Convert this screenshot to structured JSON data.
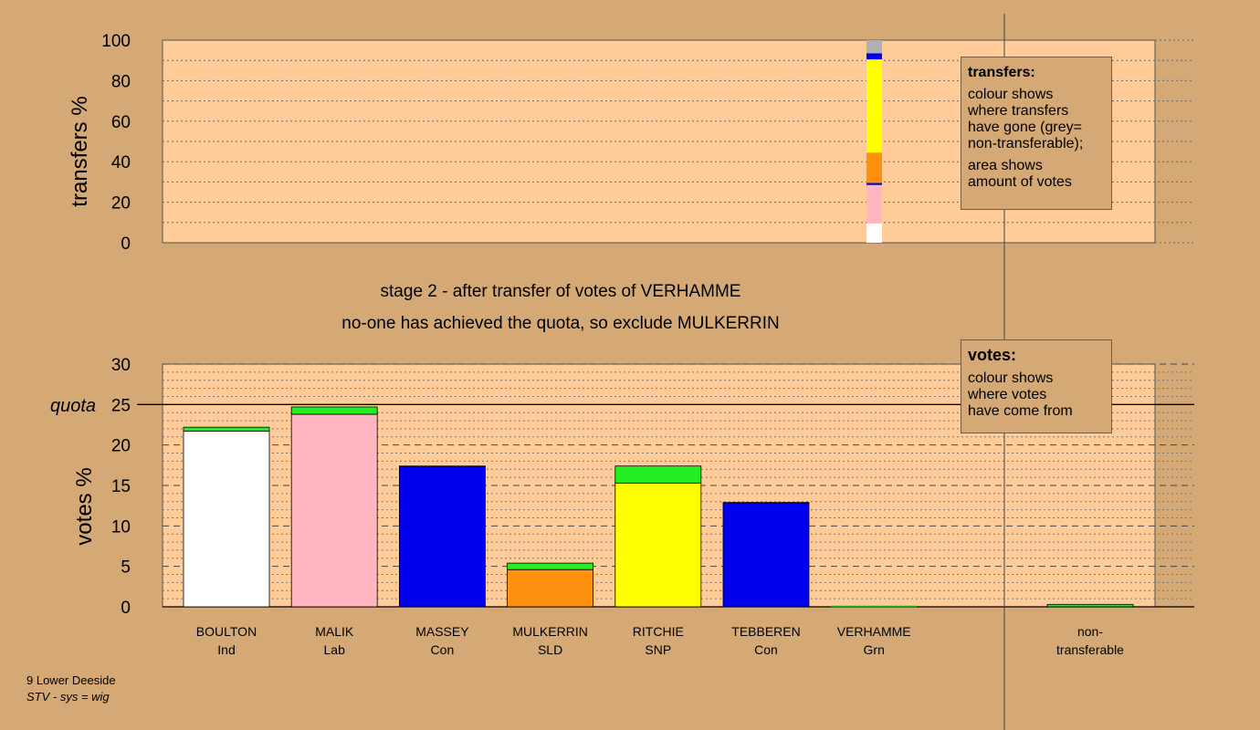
{
  "stage_title": "stage 2 - after transfer of votes of VERHAMME",
  "stage_subtitle": "no-one has achieved the quota, so exclude MULKERRIN",
  "transfers_box": {
    "title": "transfers:",
    "line1": "colour shows\nwhere transfers\nhave gone (grey=\nnon-transferable);",
    "line2": "area shows\namount of votes"
  },
  "votes_box": {
    "title": "votes:",
    "line1": "colour shows\nwhere votes\nhave come from"
  },
  "footer": {
    "line1": "9 Lower Deeside",
    "line2": "STV - sys = wig"
  },
  "colors": {
    "background": "#D4A976",
    "plot_area": "#FFCC99",
    "transfer_green": "#22EE22"
  },
  "chart_data": [
    {
      "type": "bar",
      "chart": "transfers",
      "ylabel": "transfers %",
      "ylim": [
        0,
        100
      ],
      "yticks": [
        0,
        20,
        40,
        60,
        80,
        100
      ],
      "transfer_from": "VERHAMME",
      "segments": [
        {
          "to": "BOULTON",
          "color": "#FFFFFF",
          "start": 0,
          "end": 9.5
        },
        {
          "to": "MALIK",
          "color": "#FFB6C1",
          "start": 9.5,
          "end": 28.5
        },
        {
          "to": "MASSEY",
          "color": "#0000EE",
          "start": 28.5,
          "end": 29.5
        },
        {
          "to": "MULKERRIN",
          "color": "#FF9010",
          "start": 29.5,
          "end": 44.5
        },
        {
          "to": "RITCHIE",
          "color": "#FFFF00",
          "start": 44.5,
          "end": 90.5
        },
        {
          "to": "TEBBEREN",
          "color": "#0000EE",
          "start": 90.5,
          "end": 93.5
        },
        {
          "to": "non-transferable",
          "color": "#B0B0B0",
          "start": 93.5,
          "end": 100
        }
      ]
    },
    {
      "type": "bar",
      "chart": "votes",
      "ylabel": "votes %",
      "quota_label": "quota",
      "quota": 25,
      "ylim": [
        0,
        30
      ],
      "yticks": [
        0,
        5,
        10,
        15,
        20,
        25,
        30
      ],
      "categories": [
        {
          "name": "BOULTON",
          "party": "Ind",
          "color": "#FFFFFF",
          "base": 21.7,
          "transfer": 0.5
        },
        {
          "name": "MALIK",
          "party": "Lab",
          "color": "#FFB6C1",
          "base": 23.8,
          "transfer": 0.9
        },
        {
          "name": "MASSEY",
          "party": "Con",
          "color": "#0000EE",
          "base": 17.3,
          "transfer": 0.1
        },
        {
          "name": "MULKERRIN",
          "party": "SLD",
          "color": "#FF9010",
          "base": 4.6,
          "transfer": 0.8
        },
        {
          "name": "RITCHIE",
          "party": "SNP",
          "color": "#FFFF00",
          "base": 15.3,
          "transfer": 2.1
        },
        {
          "name": "TEBBEREN",
          "party": "Con",
          "color": "#0000EE",
          "base": 12.8,
          "transfer": 0.1
        },
        {
          "name": "VERHAMME",
          "party": "Grn",
          "color": "#22AA22",
          "base": 0,
          "transfer": 0
        }
      ],
      "nontransferable": {
        "label_line1": "non-",
        "label_line2": "transferable",
        "value": 0.3
      }
    }
  ]
}
